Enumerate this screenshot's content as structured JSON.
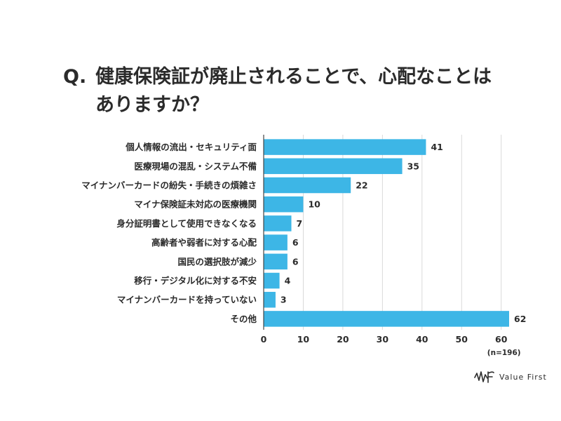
{
  "question": {
    "prefix": "Q.",
    "text": "健康保険証が廃止されることで、心配なことは\nありますか？"
  },
  "brand": {
    "name": "Value First",
    "logo_icon": "wf-mark-icon"
  },
  "colors": {
    "bar": "#3db6e6",
    "grid": "#d9d9d9",
    "axis": "#444444",
    "text": "#2b2b2b"
  },
  "chart_data": {
    "type": "bar",
    "orientation": "horizontal",
    "categories": [
      "個人情報の流出・セキュリティ面",
      "医療現場の混乱・システム不備",
      "マイナンバーカードの紛失・手続きの煩雑さ",
      "マイナ保険証未対応の医療機関",
      "身分証明書として使用できなくなる",
      "高齢者や弱者に対する心配",
      "国民の選択肢が減少",
      "移行・デジタル化に対する不安",
      "マイナンバーカードを持っていない",
      "その他"
    ],
    "values": [
      41,
      35,
      22,
      10,
      7,
      6,
      6,
      4,
      3,
      62
    ],
    "xlim": [
      0,
      62
    ],
    "xticks": [
      0,
      10,
      20,
      30,
      40,
      50,
      60
    ],
    "grid": true,
    "note": "(n=196)"
  }
}
